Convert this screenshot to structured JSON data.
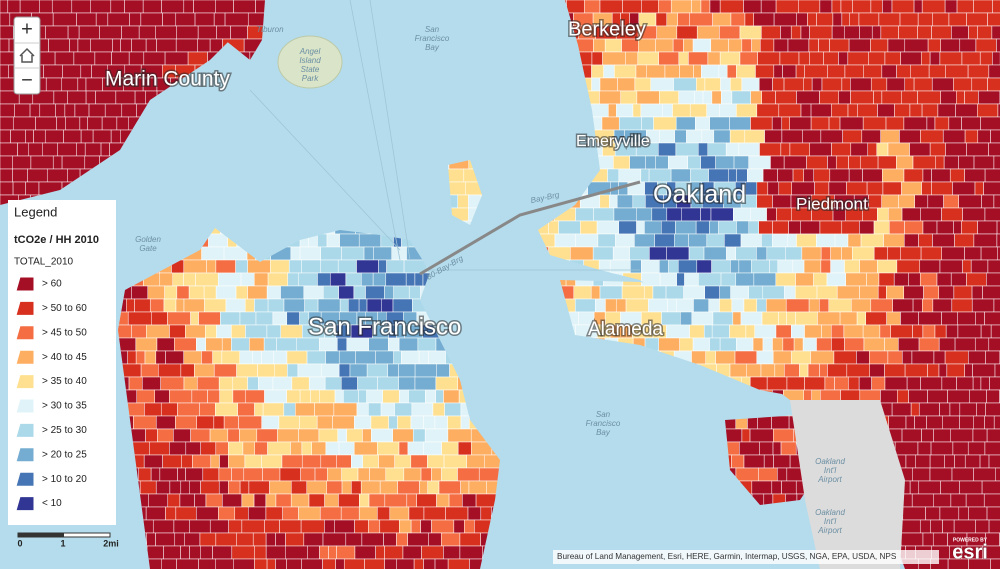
{
  "map": {
    "place_labels": [
      "Marin County",
      "Berkeley",
      "Emeryville",
      "Oakland",
      "Piedmont",
      "San Francisco",
      "Alameda"
    ],
    "basemap_labels": [
      [
        "Tiburon"
      ],
      [
        "Angel",
        "Island",
        "State",
        "Park"
      ],
      [
        "San",
        "Francisco",
        "Bay"
      ],
      [
        "Golden",
        "Gate"
      ],
      [
        "Bay-Brg"
      ],
      [
        "80-Bay-Brg"
      ],
      [
        "San",
        "Francisco",
        "Bay"
      ],
      [
        "Oakland",
        "Int'l",
        "Airport"
      ],
      [
        "Oakland",
        "Int'l",
        "Airport"
      ]
    ],
    "zoom_controls": [
      "+",
      "−"
    ]
  },
  "legend": {
    "title": "Legend",
    "layer": "tCO2e / HH 2010",
    "field": "TOTAL_2010",
    "classes": [
      {
        "label": "> 60",
        "color": "#a50f26"
      },
      {
        "label": "> 50 to 60",
        "color": "#d7301f"
      },
      {
        "label": "> 45 to 50",
        "color": "#f46d43"
      },
      {
        "label": "> 40 to 45",
        "color": "#fdae61"
      },
      {
        "label": "> 35 to 40",
        "color": "#fee090"
      },
      {
        "label": "> 30 to 35",
        "color": "#e0f3f8"
      },
      {
        "label": "> 25 to 30",
        "color": "#abd9e9"
      },
      {
        "label": "> 20 to 25",
        "color": "#74add1"
      },
      {
        "label": "> 10 to 20",
        "color": "#4575b4"
      },
      {
        "label": "< 10",
        "color": "#313695"
      }
    ]
  },
  "scale_bar": {
    "labels": [
      "0",
      "1",
      "2mi"
    ]
  },
  "attribution": "Bureau of Land Management, Esri, HERE, Garmin, Intermap, USGS, NGA, EPA, USDA, NPS",
  "logo": {
    "powered": "POWERED BY",
    "brand": "esri"
  }
}
